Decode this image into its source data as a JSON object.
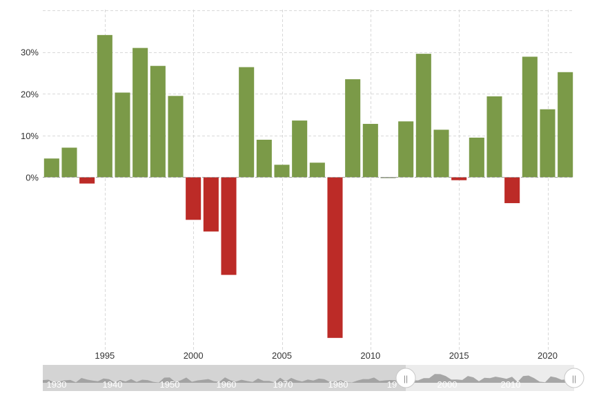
{
  "chart_data": {
    "type": "bar",
    "title": "",
    "xlabel": "",
    "ylabel": "",
    "ylim": [
      -0.385,
      0.4
    ],
    "xlim": [
      1991.5,
      2021.5
    ],
    "y_ticks": [
      {
        "value": 0.3,
        "label": "30%"
      },
      {
        "value": 0.2,
        "label": "20%"
      },
      {
        "value": 0.1,
        "label": "10%"
      },
      {
        "value": 0.0,
        "label": "0%"
      }
    ],
    "x_ticks": [
      1995,
      2000,
      2005,
      2010,
      2015,
      2020
    ],
    "x_tick_labels": [
      "1995",
      "2000",
      "2005",
      "2010",
      "2015",
      "2020"
    ],
    "grid": true,
    "positive_color": "#7b9a48",
    "negative_color": "#bc2b27",
    "series": [
      {
        "x": [
          1992,
          1993,
          1994,
          1995,
          1996,
          1997,
          1998,
          1999,
          2000,
          2001,
          2002,
          2003,
          2004,
          2005,
          2006,
          2007,
          2008,
          2009,
          2010,
          2011,
          2012,
          2013,
          2014,
          2015,
          2016,
          2017,
          2018,
          2019,
          2020,
          2021
        ],
        "values": [
          0.045,
          0.071,
          -0.015,
          0.341,
          0.203,
          0.31,
          0.267,
          0.195,
          -0.102,
          -0.13,
          -0.234,
          0.264,
          0.09,
          0.03,
          0.136,
          0.035,
          -0.385,
          0.235,
          0.128,
          0.0,
          0.134,
          0.296,
          0.114,
          -0.007,
          0.095,
          0.194,
          -0.062,
          0.289,
          0.163,
          0.252
        ]
      }
    ]
  },
  "navigator": {
    "labels": [
      "1930",
      "1940",
      "1950",
      "1960",
      "1970",
      "1980",
      "19",
      "2000",
      "2010"
    ],
    "handle_left_glyph": "||",
    "handle_right_glyph": "||"
  }
}
